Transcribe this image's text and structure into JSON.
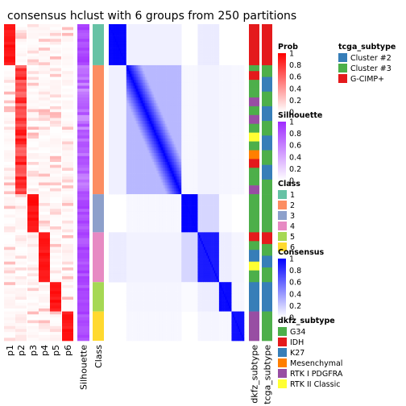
{
  "chart_data": {
    "type": "heatmap",
    "title": "consensus hclust with 6 groups from 250 partitions",
    "class_k": 6,
    "class_colors": [
      "#66C2A5",
      "#FC8D62",
      "#8DA0CB",
      "#E78AC3",
      "#A6D854",
      "#FFD92F"
    ],
    "class_sizes": [
      14,
      44,
      13,
      17,
      10,
      10
    ],
    "class_within_consensus": [
      0.98,
      0.52,
      0.99,
      0.9,
      0.96,
      0.94
    ],
    "class_between_consensus": [
      [
        0,
        0.06,
        0,
        0.08,
        0,
        0
      ],
      [
        0.06,
        0,
        0.03,
        0.05,
        0.04,
        0.03
      ],
      [
        0,
        0.03,
        0,
        0.16,
        0.02,
        0
      ],
      [
        0.08,
        0.05,
        0.16,
        0,
        0.07,
        0.04
      ],
      [
        0,
        0.04,
        0.02,
        0.07,
        0,
        0.03
      ],
      [
        0,
        0.03,
        0,
        0.04,
        0.03,
        0
      ]
    ],
    "prob_column_labels": [
      "p1",
      "p2",
      "p3",
      "p4",
      "p5",
      "p6"
    ],
    "silhouette_label": "Silhouette",
    "class_label": "Class",
    "dkfz_label": "dkfz_subtype",
    "tcga_label": "tcga_subtype",
    "dkfz_colors": {
      "G34": "#4DAF4A",
      "IDH": "#E41A1C",
      "K27": "#377EB8",
      "Mesenchymal": "#FF7F00",
      "RTK I PDGFRA": "#984EA3",
      "RTK II Classic": "#FFFF33"
    },
    "tcga_colors": {
      "Cluster #2": "#377EB8",
      "Cluster #3": "#4DAF4A",
      "G-CIMP+": "#E41A1C"
    },
    "dkfz_by_class": [
      [
        "IDH"
      ],
      [
        "G34",
        "IDH",
        "G34",
        "G34",
        "RTK I PDGFRA",
        "G34",
        "RTK I PDGFRA",
        "G34",
        "RTK II Classic",
        "G34",
        "Mesenchymal",
        "IDH",
        "G34",
        "G34",
        "RTK I PDGFRA"
      ],
      [
        "G34"
      ],
      [
        "IDH",
        "G34",
        "K27",
        "RTK II Classic",
        "G34"
      ],
      [
        "K27"
      ],
      [
        "RTK I PDGFRA"
      ]
    ],
    "tcga_by_class": [
      [
        "G-CIMP+"
      ],
      [
        "Cluster #3",
        "Cluster #2",
        "Cluster #3",
        "Cluster #2",
        "Cluster #3",
        "Cluster #2",
        "Cluster #3",
        "Cluster #2",
        "Cluster #3"
      ],
      [
        "Cluster #3"
      ],
      [
        "G-CIMP+",
        "Cluster #3",
        "Cluster #2",
        "Cluster #3"
      ],
      [
        "Cluster #2"
      ],
      [
        "Cluster #3"
      ]
    ],
    "legends": {
      "prob": {
        "title": "Prob",
        "ticks": [
          "1",
          "0.8",
          "0.6",
          "0.4",
          "0.2",
          "0"
        ],
        "color_low": "#FFFFFF",
        "color_high": "#FF0000"
      },
      "silhouette": {
        "title": "Silhouette",
        "ticks": [
          "1",
          "0.8",
          "0.6",
          "0.4",
          "0.2",
          "0"
        ],
        "color_low": "#FFFFFF",
        "color_high": "#9F2BFF"
      },
      "class": {
        "title": "Class",
        "items": [
          "1",
          "2",
          "3",
          "4",
          "5",
          "6"
        ]
      },
      "consensus": {
        "title": "Consensus",
        "ticks": [
          "1",
          "0.8",
          "0.6",
          "0.4",
          "0.2",
          "0"
        ],
        "color_low": "#FFFFFF",
        "color_high": "#0000FF"
      },
      "dkfz": {
        "title": "dkfz_subtype",
        "items": [
          "G34",
          "IDH",
          "K27",
          "Mesenchymal",
          "RTK I PDGFRA",
          "RTK II Classic"
        ]
      },
      "tcga": {
        "title": "tcga_subtype",
        "items": [
          "Cluster #2",
          "Cluster #3",
          "G-CIMP+"
        ]
      }
    }
  }
}
